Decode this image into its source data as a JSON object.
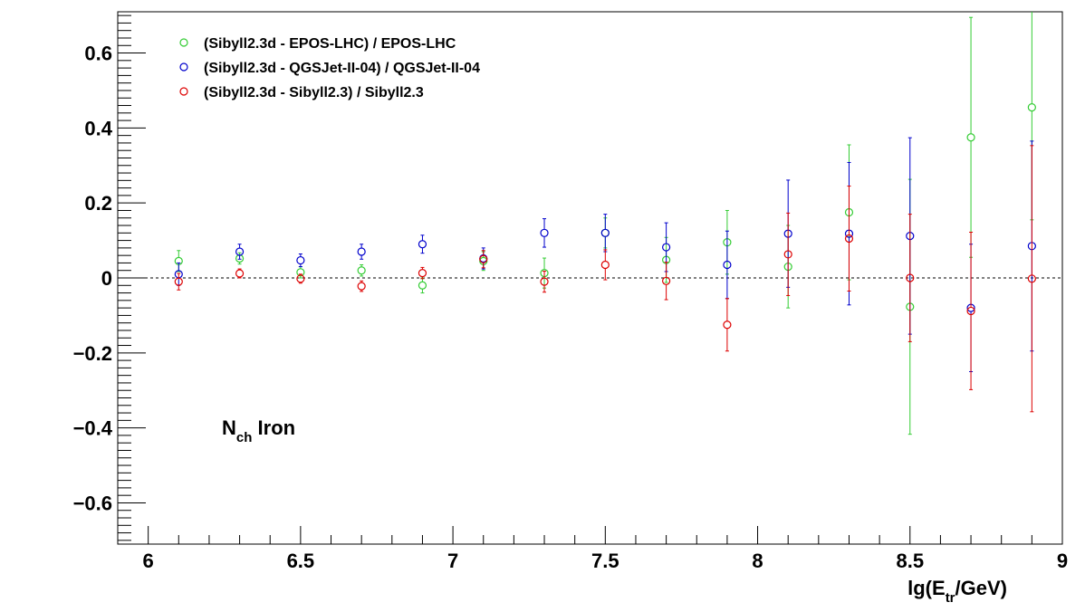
{
  "chart_data": {
    "type": "scatter",
    "xlabel": {
      "base": "lg(E",
      "sub": "tr",
      "rest": "/GeV)"
    },
    "annotation": {
      "base": "N",
      "sub": "ch",
      "rest": " Iron"
    },
    "xlim": [
      5.9,
      9.0
    ],
    "ylim": [
      -0.71,
      0.71
    ],
    "x_ticks": [
      6,
      6.5,
      7,
      7.5,
      8,
      8.5,
      9
    ],
    "x_tick_labels": [
      "6",
      "6.5",
      "7",
      "7.5",
      "8",
      "8.5",
      "9"
    ],
    "y_ticks": [
      -0.6,
      -0.4,
      -0.2,
      0,
      0.2,
      0.4,
      0.6
    ],
    "y_tick_labels": [
      "−0.6",
      "−0.4",
      "−0.2",
      "0",
      "0.2",
      "0.4",
      "0.6"
    ],
    "reference_line_y": 0,
    "legend_position": "top-left",
    "series": [
      {
        "name": "(Sibyll2.3d - EPOS-LHC) / EPOS-LHC",
        "color": "#33cc33",
        "x": [
          6.1,
          6.3,
          6.5,
          6.7,
          6.9,
          7.1,
          7.3,
          7.5,
          7.7,
          7.9,
          8.1,
          8.3,
          8.5,
          8.7,
          8.9
        ],
        "y": [
          0.045,
          0.052,
          0.015,
          0.02,
          -0.02,
          0.045,
          0.013,
          0.12,
          0.048,
          0.095,
          0.03,
          0.175,
          -0.077,
          0.375,
          0.455
        ],
        "yerr": [
          0.028,
          0.015,
          0.015,
          0.015,
          0.02,
          0.025,
          0.04,
          0.04,
          0.06,
          0.085,
          0.11,
          0.18,
          0.34,
          0.32,
          0.3
        ]
      },
      {
        "name": "(Sibyll2.3d - QGSJet-II-04) / QGSJet-II-04",
        "color": "#0000cc",
        "x": [
          6.1,
          6.3,
          6.5,
          6.7,
          6.9,
          7.1,
          7.3,
          7.5,
          7.7,
          7.9,
          8.1,
          8.3,
          8.5,
          8.7,
          8.9
        ],
        "y": [
          0.01,
          0.07,
          0.047,
          0.07,
          0.09,
          0.052,
          0.12,
          0.12,
          0.082,
          0.035,
          0.118,
          0.118,
          0.112,
          -0.08,
          0.085
        ],
        "yerr": [
          0.03,
          0.02,
          0.017,
          0.02,
          0.024,
          0.028,
          0.038,
          0.05,
          0.065,
          0.09,
          0.143,
          0.19,
          0.262,
          0.17,
          0.28
        ]
      },
      {
        "name": "(Sibyll2.3d - Sibyll2.3) / Sibyll2.3",
        "color": "#dd0000",
        "x": [
          6.1,
          6.3,
          6.5,
          6.7,
          6.9,
          7.1,
          7.3,
          7.5,
          7.7,
          7.9,
          8.1,
          8.3,
          8.5,
          8.7,
          8.9
        ],
        "y": [
          -0.01,
          0.012,
          -0.002,
          -0.022,
          0.013,
          0.05,
          -0.01,
          0.035,
          -0.008,
          -0.125,
          0.063,
          0.105,
          0.0,
          -0.088,
          -0.002
        ],
        "yerr": [
          0.022,
          0.012,
          0.012,
          0.014,
          0.015,
          0.023,
          0.028,
          0.04,
          0.05,
          0.07,
          0.11,
          0.14,
          0.17,
          0.21,
          0.355
        ]
      }
    ]
  }
}
